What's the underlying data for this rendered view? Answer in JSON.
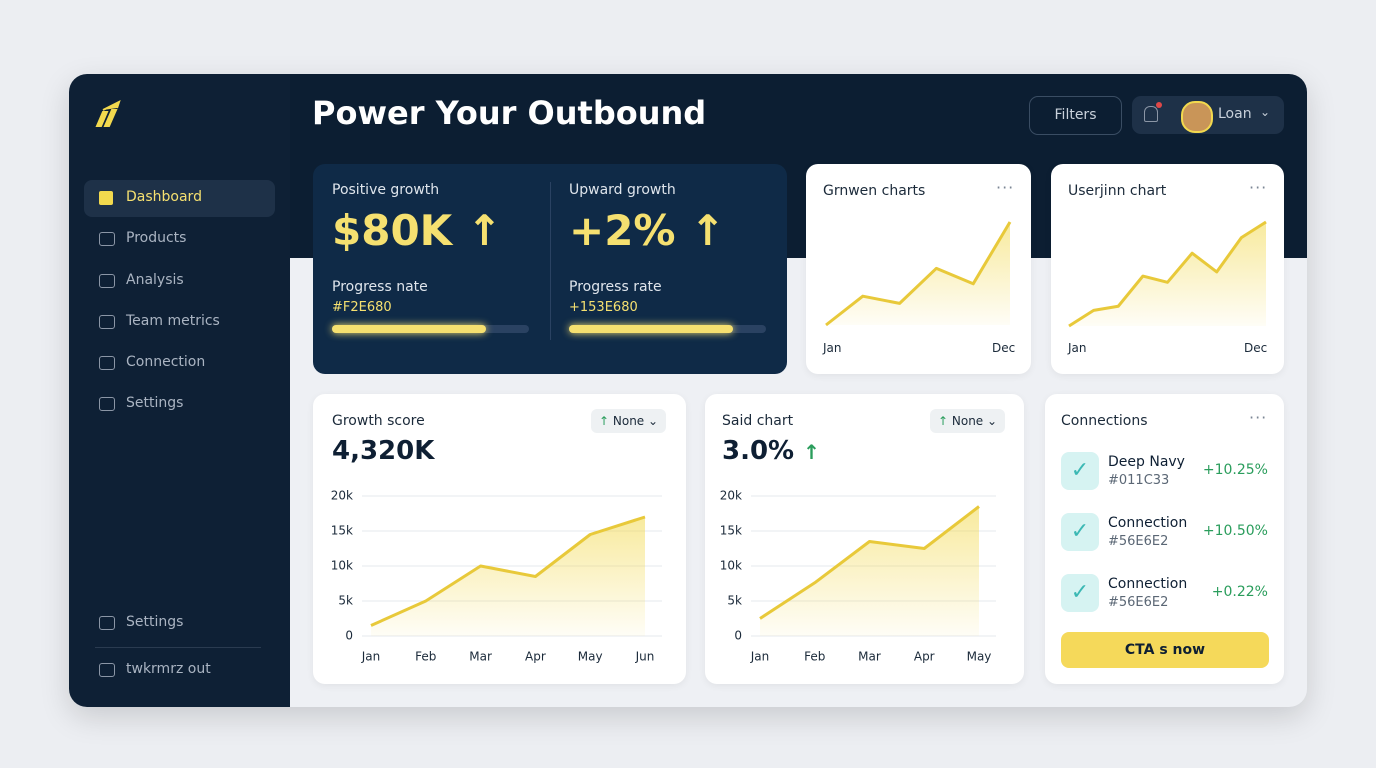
{
  "sidebar": {
    "nav": [
      "Dashboard",
      "Products",
      "Analysis",
      "Team metrics",
      "Connection",
      "Settings"
    ],
    "bottom": [
      "Settings",
      "twkrmrz out"
    ]
  },
  "header": {
    "title": "Power Your Outbound",
    "filters": "Filters",
    "user": "Loan"
  },
  "stats": [
    {
      "label": "Positive growth",
      "value": "$80K",
      "sub": "Progress nate",
      "code": "#F2E680",
      "progress": 78
    },
    {
      "label": "Upward growth",
      "value": "+2%",
      "sub": "Progress rate",
      "code": "+153E680",
      "progress": 83
    }
  ],
  "mini_charts": [
    {
      "type": "area",
      "title": "Grnwen charts",
      "x_labels": [
        "Jan",
        "Dec"
      ],
      "values": [
        0,
        28,
        21,
        55,
        40,
        100
      ],
      "ylim": [
        0,
        100
      ]
    },
    {
      "type": "area",
      "title": "Userjinn chart",
      "x_labels": [
        "Jan",
        "Dec"
      ],
      "values": [
        0,
        15,
        19,
        48,
        42,
        70,
        52,
        85,
        100
      ],
      "ylim": [
        0,
        100
      ]
    }
  ],
  "charts": [
    {
      "type": "line",
      "title": "Growth score",
      "badge": "None",
      "headline": "4,320K",
      "categories": [
        "Jan",
        "Feb",
        "Mar",
        "Apr",
        "May",
        "Jun"
      ],
      "values": [
        1500,
        5000,
        10000,
        8500,
        14500,
        17000
      ],
      "ylim": [
        0,
        20000
      ],
      "yticks": [
        0,
        {
          "value": 5000,
          "label": "5k"
        },
        {
          "value": 10000,
          "label": "10k"
        },
        {
          "value": 15000,
          "label": "15k"
        },
        {
          "value": 20000,
          "label": "20k"
        }
      ],
      "color": "#e8c93a",
      "grid": true
    },
    {
      "type": "line",
      "title": "Said chart",
      "badge": "None",
      "headline": "3.0%",
      "categories": [
        "Jan",
        "Feb",
        "Mar",
        "Apr",
        "May"
      ],
      "values": [
        2500,
        7600,
        13500,
        12500,
        18500
      ],
      "ylim": [
        0,
        20000
      ],
      "yticks": [
        0,
        {
          "value": 5000,
          "label": "5k"
        },
        {
          "value": 10000,
          "label": "10k"
        },
        {
          "value": 15000,
          "label": "15k"
        },
        {
          "value": 20000,
          "label": "20k"
        }
      ],
      "color": "#e8c93a",
      "grid": true
    }
  ],
  "connections": {
    "title": "Connections",
    "items": [
      {
        "name": "Deep Navy",
        "code": "#011C33",
        "change": "+10.25%"
      },
      {
        "name": "Connection",
        "code": "#56E6E2",
        "change": "+10.50%"
      },
      {
        "name": "Connection",
        "code": "#56E6E2",
        "change": "+0.22%"
      }
    ],
    "cta": "CTA s now"
  }
}
